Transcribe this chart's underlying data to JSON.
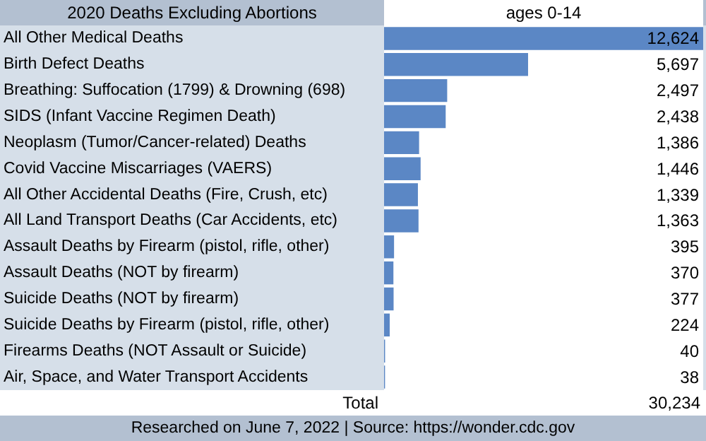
{
  "chart_data": {
    "type": "bar",
    "orientation": "horizontal",
    "title": "2020 Deaths Excluding Abortions",
    "xlabel": "ages  0-14",
    "categories": [
      "All Other Medical Deaths",
      "Birth Defect Deaths",
      "Breathing: Suffocation (1799) & Drowning (698)",
      "SIDS (Infant Vaccine Regimen Death)",
      "Neoplasm (Tumor/Cancer-related) Deaths",
      "Covid Vaccine Miscarriages (VAERS)",
      "All Other Accidental Deaths (Fire, Crush, etc)",
      "All Land Transport Deaths (Car Accidents, etc)",
      "Assault Deaths by Firearm (pistol, rifle, other)",
      "Assault Deaths (NOT by firearm)",
      "Suicide Deaths (NOT by firearm)",
      "Suicide Deaths by Firearm (pistol, rifle, other)",
      "Firearms Deaths (NOT Assault or Suicide)",
      "Air, Space, and Water Transport Accidents"
    ],
    "values": [
      12624,
      5697,
      2497,
      2438,
      1386,
      1446,
      1339,
      1363,
      395,
      370,
      377,
      224,
      40,
      38
    ],
    "color": "#5b87c5",
    "value_labels": [
      "12,624",
      "5,697",
      "2,497",
      "2,438",
      "1,386",
      "1,446",
      "1,339",
      "1,363",
      "395",
      "370",
      "377",
      "224",
      "40",
      "38"
    ],
    "annotations": [
      "Total",
      "30,234",
      "Researched on June 7, 2022  |  Source: https://wonder.cdc.gov"
    ]
  }
}
